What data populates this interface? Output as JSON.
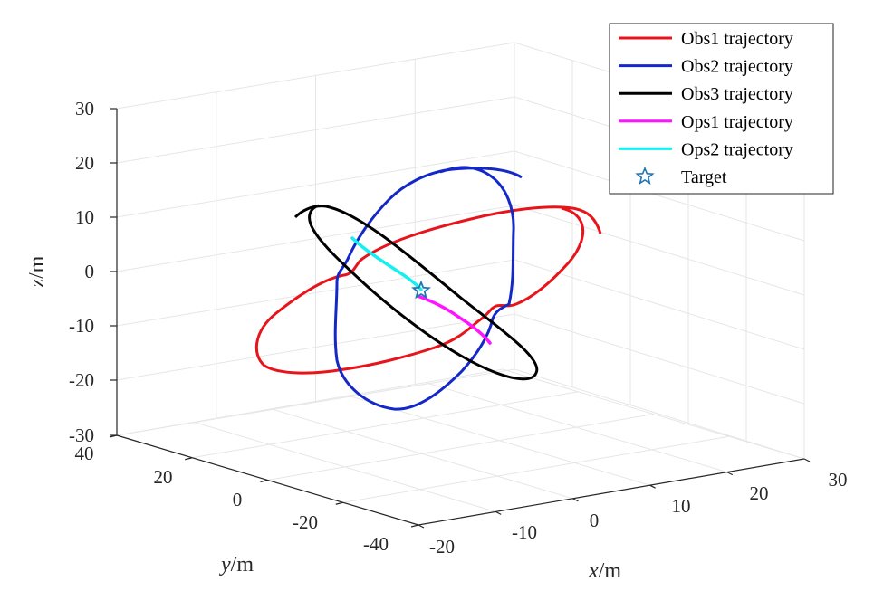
{
  "chart_data": {
    "type": "line3d",
    "view": "3d-box",
    "grid": true,
    "legend_position": "top-right",
    "axes": {
      "x": {
        "label_var": "x",
        "label_unit": "/m",
        "ticks": [
          "-20",
          "-10",
          "0",
          "10",
          "20",
          "30"
        ]
      },
      "y": {
        "label_var": "y",
        "label_unit": "/m",
        "ticks": [
          "40",
          "20",
          "0",
          "-20",
          "-40"
        ]
      },
      "z": {
        "label_var": "z",
        "label_unit": "/m",
        "ticks": [
          "30",
          "20",
          "10",
          "0",
          "-10",
          "-20",
          "-30"
        ]
      }
    },
    "series": [
      {
        "name": "Obs1 trajectory",
        "color": "#e8141b",
        "kind": "line"
      },
      {
        "name": "Obs2 trajectory",
        "color": "#1428c8",
        "kind": "line"
      },
      {
        "name": "Obs3 trajectory",
        "color": "#000000",
        "kind": "line"
      },
      {
        "name": "Ops1 trajectory",
        "color": "#ff14ff",
        "kind": "line"
      },
      {
        "name": "Ops2 trajectory",
        "color": "#14f0f0",
        "kind": "line"
      },
      {
        "name": "Target",
        "color": "#1f77b4",
        "kind": "marker",
        "marker": "star"
      }
    ]
  }
}
